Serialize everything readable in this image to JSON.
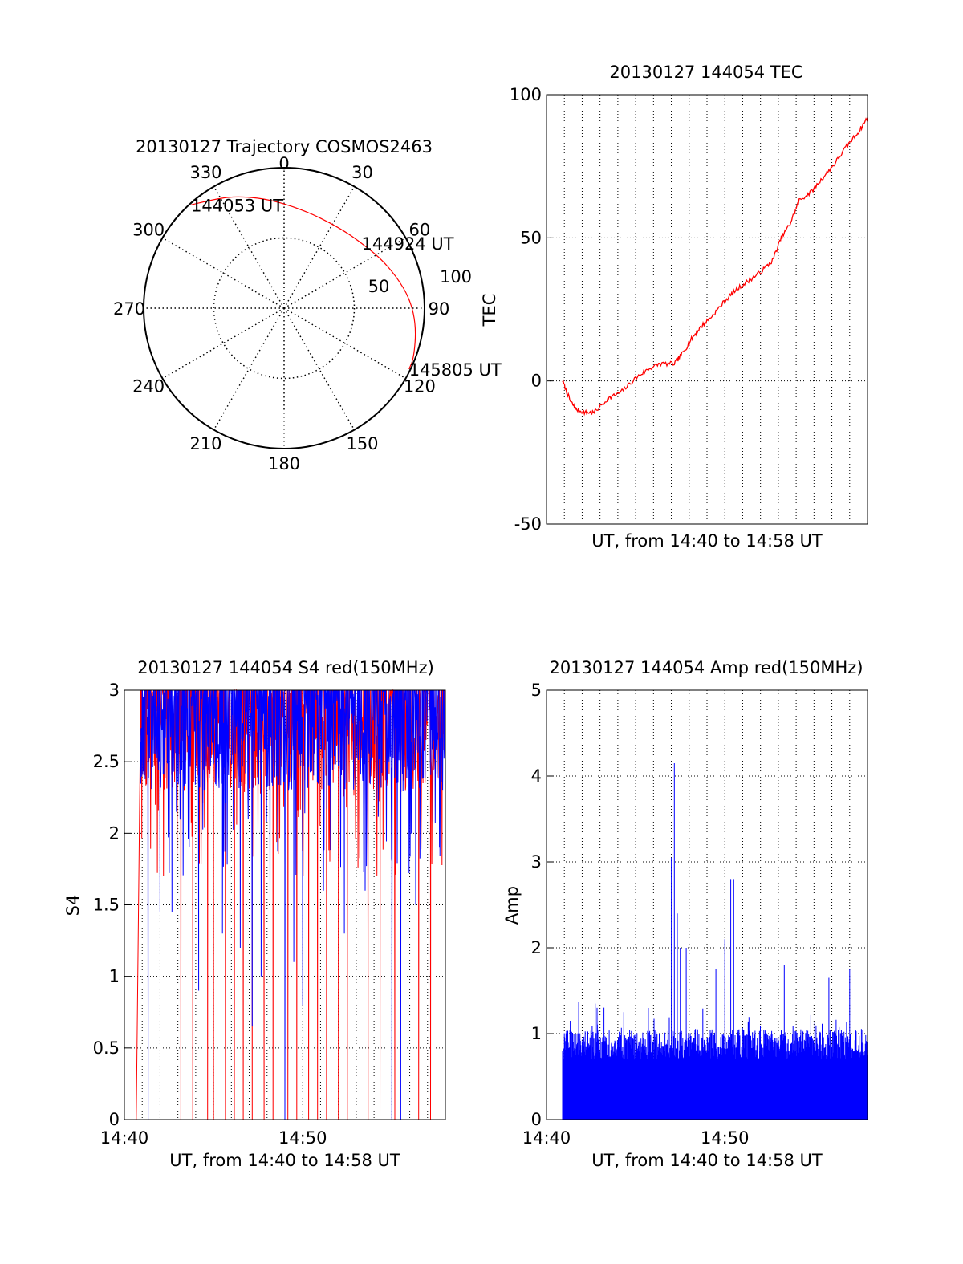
{
  "chart_data": [
    {
      "type": "polar",
      "title": "20130127 Trajectory COSMOS2463",
      "azimuth_labels": [
        "0",
        "30",
        "60",
        "90",
        "120",
        "150",
        "180",
        "210",
        "240",
        "270",
        "300",
        "330"
      ],
      "ring_labels": [
        "50",
        "100"
      ],
      "rlim": [
        0,
        100
      ],
      "grid": true,
      "series": [
        {
          "color": "#ff0000",
          "points": [
            {
              "azimuth": 318,
              "radius": 99
            },
            {
              "azimuth": 330,
              "radius": 91
            },
            {
              "azimuth": 341,
              "radius": 84
            },
            {
              "azimuth": 352,
              "radius": 78
            },
            {
              "azimuth": 4,
              "radius": 73
            },
            {
              "azimuth": 16,
              "radius": 70
            },
            {
              "azimuth": 28,
              "radius": 69
            },
            {
              "azimuth": 40,
              "radius": 70
            },
            {
              "azimuth": 50,
              "radius": 72
            },
            {
              "azimuth": 62,
              "radius": 77
            },
            {
              "azimuth": 74,
              "radius": 83
            },
            {
              "azimuth": 86,
              "radius": 90
            },
            {
              "azimuth": 98,
              "radius": 95
            },
            {
              "azimuth": 111,
              "radius": 99
            },
            {
              "azimuth": 116,
              "radius": 99
            }
          ]
        }
      ],
      "annotations": [
        {
          "text": "144053 UT",
          "azimuth": 318,
          "radius": 99
        },
        {
          "text": "144924 UT",
          "azimuth": 50,
          "radius": 72
        },
        {
          "text": "145805 UT",
          "azimuth": 116,
          "radius": 99
        }
      ]
    },
    {
      "type": "line",
      "title": "20130127 144054 TEC",
      "xlabel": "UT, from 14:40 to 14:58 UT",
      "ylabel": "TEC",
      "xlim": [
        "14:40",
        "14:58"
      ],
      "ylim": [
        -50,
        100
      ],
      "yticks": [
        "-50",
        "0",
        "50",
        "100"
      ],
      "xticks": [],
      "grid": true,
      "series": [
        {
          "color": "#ff0000",
          "x": [
            "14:40:54",
            "14:41:20",
            "14:41:40",
            "14:42:10",
            "14:42:40",
            "14:43:30",
            "14:44:10",
            "14:45:00",
            "14:45:40",
            "14:46:20",
            "14:47:10",
            "14:47:40",
            "14:48:10",
            "14:48:40",
            "14:49:20",
            "14:50:00",
            "14:50:40",
            "14:51:20",
            "14:52:00",
            "14:52:40",
            "14:53:10",
            "14:53:40",
            "14:54:10",
            "14:54:50",
            "14:55:30",
            "14:56:10",
            "14:56:50",
            "14:57:30",
            "14:58:00"
          ],
          "y": [
            0,
            -7,
            -10,
            -11,
            -11,
            -6,
            -4,
            1,
            4,
            6,
            6,
            10,
            15,
            19,
            23,
            28,
            32,
            35,
            38,
            42,
            50,
            55,
            63,
            66,
            71,
            76,
            82,
            87,
            92
          ]
        }
      ]
    },
    {
      "type": "line",
      "title": "20130127 144054 S4 red(150MHz)",
      "xlabel": "UT, from 14:40 to 14:58 UT",
      "ylabel": "S4",
      "xlim": [
        "14:40",
        "14:58"
      ],
      "xticks": [
        "14:40",
        "14:50"
      ],
      "ylim": [
        0,
        3
      ],
      "yticks": [
        "0",
        "0.5",
        "1",
        "1.5",
        "2",
        "2.5",
        "3"
      ],
      "grid": true,
      "series": [
        {
          "color": "#0000ff",
          "pattern": "dense noisy signal between 2.3 and 3, saturating at 3, with drops toward 1.5 and isolated spikes to 0",
          "dips": [
            {
              "x": "14:41:20",
              "y": 0
            },
            {
              "x": "14:42:00",
              "y": 1.45
            },
            {
              "x": "14:42:40",
              "y": 1.45
            },
            {
              "x": "14:44:10",
              "y": 0.9
            },
            {
              "x": "14:45:30",
              "y": 1.3
            },
            {
              "x": "14:46:30",
              "y": 1.2
            },
            {
              "x": "14:47:10",
              "y": 0.65
            },
            {
              "x": "14:47:40",
              "y": 1.0
            },
            {
              "x": "14:48:10",
              "y": 1.5
            },
            {
              "x": "14:49:00",
              "y": 0
            },
            {
              "x": "14:49:30",
              "y": 1.1
            },
            {
              "x": "14:50:00",
              "y": 0.8
            },
            {
              "x": "14:51:10",
              "y": 1.6
            },
            {
              "x": "14:52:20",
              "y": 1.3
            },
            {
              "x": "14:53:30",
              "y": 1.6
            },
            {
              "x": "14:55:00",
              "y": 0
            },
            {
              "x": "14:55:30",
              "y": 0
            },
            {
              "x": "14:56:20",
              "y": 1.5
            },
            {
              "x": "14:57:40",
              "y": 1.9
            }
          ]
        },
        {
          "color": "#ff0000",
          "pattern": "dense noisy signal between 2.3 and 3, saturating at 3, with frequent spikes to 0",
          "spikes_to_zero": [
            "14:40:40",
            "14:43:10",
            "14:43:50",
            "14:44:40",
            "14:45:00",
            "14:45:40",
            "14:46:10",
            "14:46:40",
            "14:47:10",
            "14:47:50",
            "14:48:20",
            "14:49:10",
            "14:49:40",
            "14:50:20",
            "14:50:50",
            "14:51:20",
            "14:52:00",
            "14:52:30",
            "14:53:40",
            "14:54:20",
            "14:55:10",
            "14:56:30",
            "14:57:10"
          ]
        }
      ]
    },
    {
      "type": "bar",
      "title": "20130127 144054 Amp red(150MHz)",
      "xlabel": "UT, from 14:40 to 14:58 UT",
      "ylabel": "Amp",
      "xlim": [
        "14:40",
        "14:58"
      ],
      "xticks": [
        "14:40",
        "14:50"
      ],
      "ylim": [
        0,
        5
      ],
      "yticks": [
        "0",
        "1",
        "2",
        "3",
        "4",
        "5"
      ],
      "grid": true,
      "series": [
        {
          "color": "#0000ff",
          "pattern": "dense bars with baseline amplitude about 0.7 to 1.1",
          "peaks": [
            {
              "x": "14:41:20",
              "y": 1.15
            },
            {
              "x": "14:42:50",
              "y": 1.3
            },
            {
              "x": "14:44:20",
              "y": 1.25
            },
            {
              "x": "14:47:00",
              "y": 3.05
            },
            {
              "x": "14:47:10",
              "y": 4.15
            },
            {
              "x": "14:47:20",
              "y": 2.4
            },
            {
              "x": "14:47:30",
              "y": 2.0
            },
            {
              "x": "14:47:50",
              "y": 2.0
            },
            {
              "x": "14:49:30",
              "y": 1.75
            },
            {
              "x": "14:50:00",
              "y": 2.1
            },
            {
              "x": "14:50:20",
              "y": 2.8
            },
            {
              "x": "14:50:30",
              "y": 2.8
            },
            {
              "x": "14:53:20",
              "y": 1.8
            },
            {
              "x": "14:55:50",
              "y": 1.65
            },
            {
              "x": "14:57:00",
              "y": 1.75
            },
            {
              "x": "14:58:00",
              "y": 1.45
            }
          ]
        }
      ]
    }
  ]
}
